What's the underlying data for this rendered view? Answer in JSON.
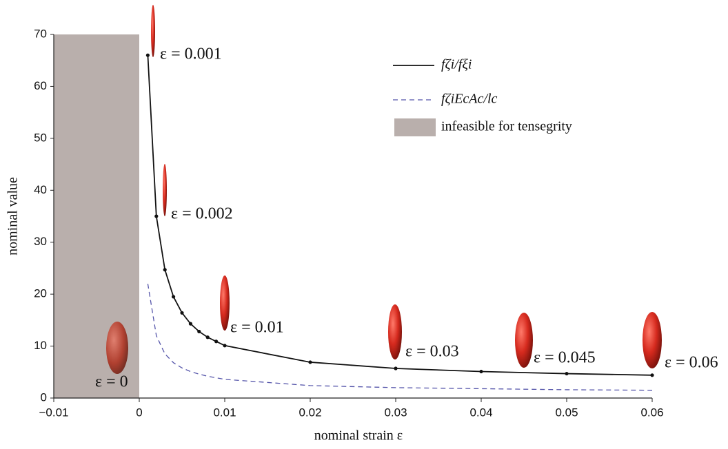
{
  "chart_data": {
    "type": "line",
    "xlabel": "nominal strain  ε",
    "ylabel": "nominal value",
    "xlim": [
      -0.01,
      0.06
    ],
    "xticks": [
      {
        "value": -0.01,
        "label": "−0.01"
      },
      0,
      0.01,
      0.02,
      0.03,
      0.04,
      0.05,
      0.06
    ],
    "ylim": [
      0,
      70
    ],
    "yticks": [
      0,
      10,
      20,
      30,
      40,
      50,
      60,
      70
    ],
    "series": [
      {
        "name": "fζi/fξi",
        "color": "#111111",
        "style": "solid",
        "markers": true,
        "x": [
          0.001,
          0.002,
          0.003,
          0.004,
          0.005,
          0.006,
          0.007,
          0.008,
          0.009,
          0.01,
          0.02,
          0.03,
          0.04,
          0.05,
          0.06
        ],
        "values": [
          66,
          35,
          24.7,
          19.5,
          16.4,
          14.3,
          12.8,
          11.7,
          10.9,
          10.1,
          6.9,
          5.7,
          5.1,
          4.7,
          4.4
        ]
      },
      {
        "name": "fζiEcAc/lc",
        "color": "#5555aa",
        "style": "dashed",
        "markers": false,
        "x": [
          0.001,
          0.002,
          0.003,
          0.004,
          0.005,
          0.006,
          0.007,
          0.008,
          0.009,
          0.01,
          0.02,
          0.03,
          0.04,
          0.05,
          0.06
        ],
        "values": [
          22,
          12,
          8.5,
          6.8,
          5.8,
          5.1,
          4.6,
          4.2,
          3.9,
          3.6,
          2.4,
          2.0,
          1.8,
          1.6,
          1.5
        ]
      }
    ],
    "shaded_region": {
      "name": "infeasible for tensegrity",
      "color": "#b9afac",
      "x": [
        -0.01,
        0
      ],
      "y": [
        0,
        70
      ]
    },
    "annotations": [
      "ε = 0",
      "ε = 0.001",
      "ε = 0.002",
      "ε = 0.01",
      "ε = 0.03",
      "ε = 0.045",
      "ε = 0.06"
    ]
  }
}
